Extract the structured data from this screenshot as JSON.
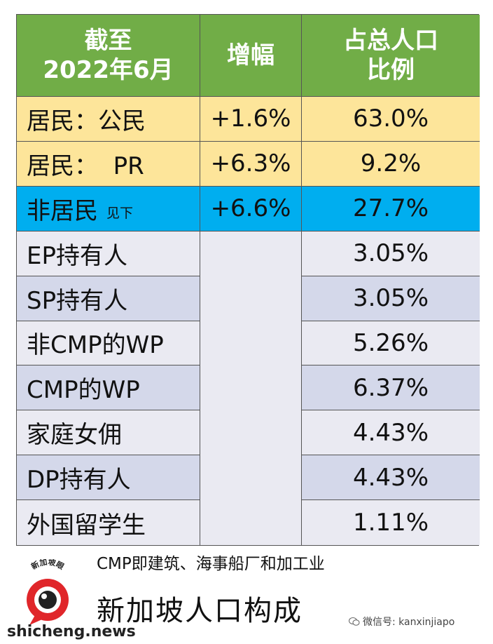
{
  "table": {
    "header": {
      "col1_line1": "截至",
      "col1_line2": "2022年6月",
      "col2": "增幅",
      "col3_line1": "占总人口",
      "col3_line2": "比例"
    },
    "main_rows": [
      {
        "label": "居民：公民",
        "growth": "+1.6%",
        "share": "63.0%"
      },
      {
        "label": "居民：  PR",
        "growth": "+6.3%",
        "share": "9.2%"
      },
      {
        "label": "非居民",
        "note": "见下",
        "growth": "+6.6%",
        "share": "27.7%"
      }
    ],
    "sub_rows": [
      {
        "label": "EP持有人",
        "share": "3.05%"
      },
      {
        "label": "SP持有人",
        "share": "3.05%"
      },
      {
        "label": "非CMP的WP",
        "share": "5.26%"
      },
      {
        "label": "CMP的WP",
        "share": "6.37%"
      },
      {
        "label": "家庭女佣",
        "share": "4.43%"
      },
      {
        "label": "DP持有人",
        "share": "4.43%"
      },
      {
        "label": "外国留学生",
        "share": "1.11%"
      }
    ]
  },
  "footnote": "CMP即建筑、海事船厂和加工业",
  "caption": "新加坡人口构成",
  "logo": {
    "top_text": "新加坡眼",
    "url": "shicheng.news"
  },
  "watermark": "微信号: kanxinjiapo",
  "colors": {
    "header_green": "#71ad47",
    "resident_yellow": "#fde59a",
    "nonresident_blue": "#00aeef",
    "row_light": "#eaeaf2",
    "row_mid": "#d4d8ea",
    "logo_red": "#e0262a"
  }
}
